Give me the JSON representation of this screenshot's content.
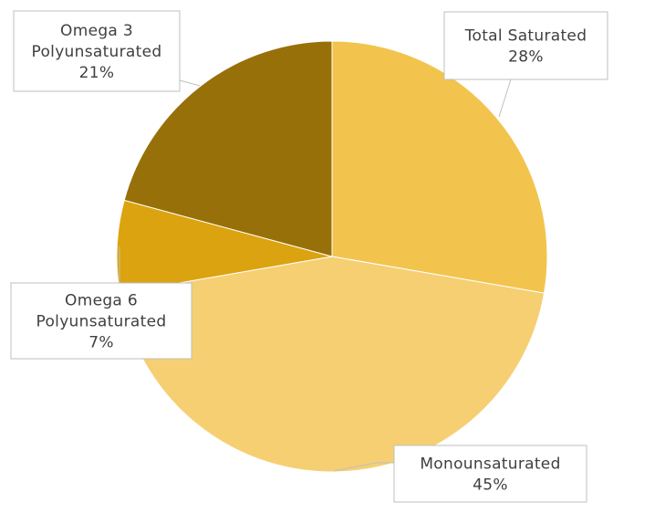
{
  "chart_data": {
    "type": "pie",
    "title": "",
    "legend": "none",
    "data_label_format": "category-and-percent",
    "slices": [
      {
        "label_lines": [
          "Total Saturated"
        ],
        "category": "Total Saturated",
        "value": 28,
        "percent_label": "28%",
        "color": "#F2C44E"
      },
      {
        "label_lines": [
          "Monounsaturated"
        ],
        "category": "Monounsaturated",
        "value": 45,
        "percent_label": "45%",
        "color": "#F6CF72"
      },
      {
        "label_lines": [
          "Omega 6",
          "Polyunsaturated"
        ],
        "category": "Omega 6 Polyunsaturated",
        "value": 7,
        "percent_label": "7%",
        "color": "#DBA30F"
      },
      {
        "label_lines": [
          "Omega 3",
          "Polyunsaturated"
        ],
        "category": "Omega 3 Polyunsaturated",
        "value": 21,
        "percent_label": "21%",
        "color": "#987009"
      }
    ]
  }
}
